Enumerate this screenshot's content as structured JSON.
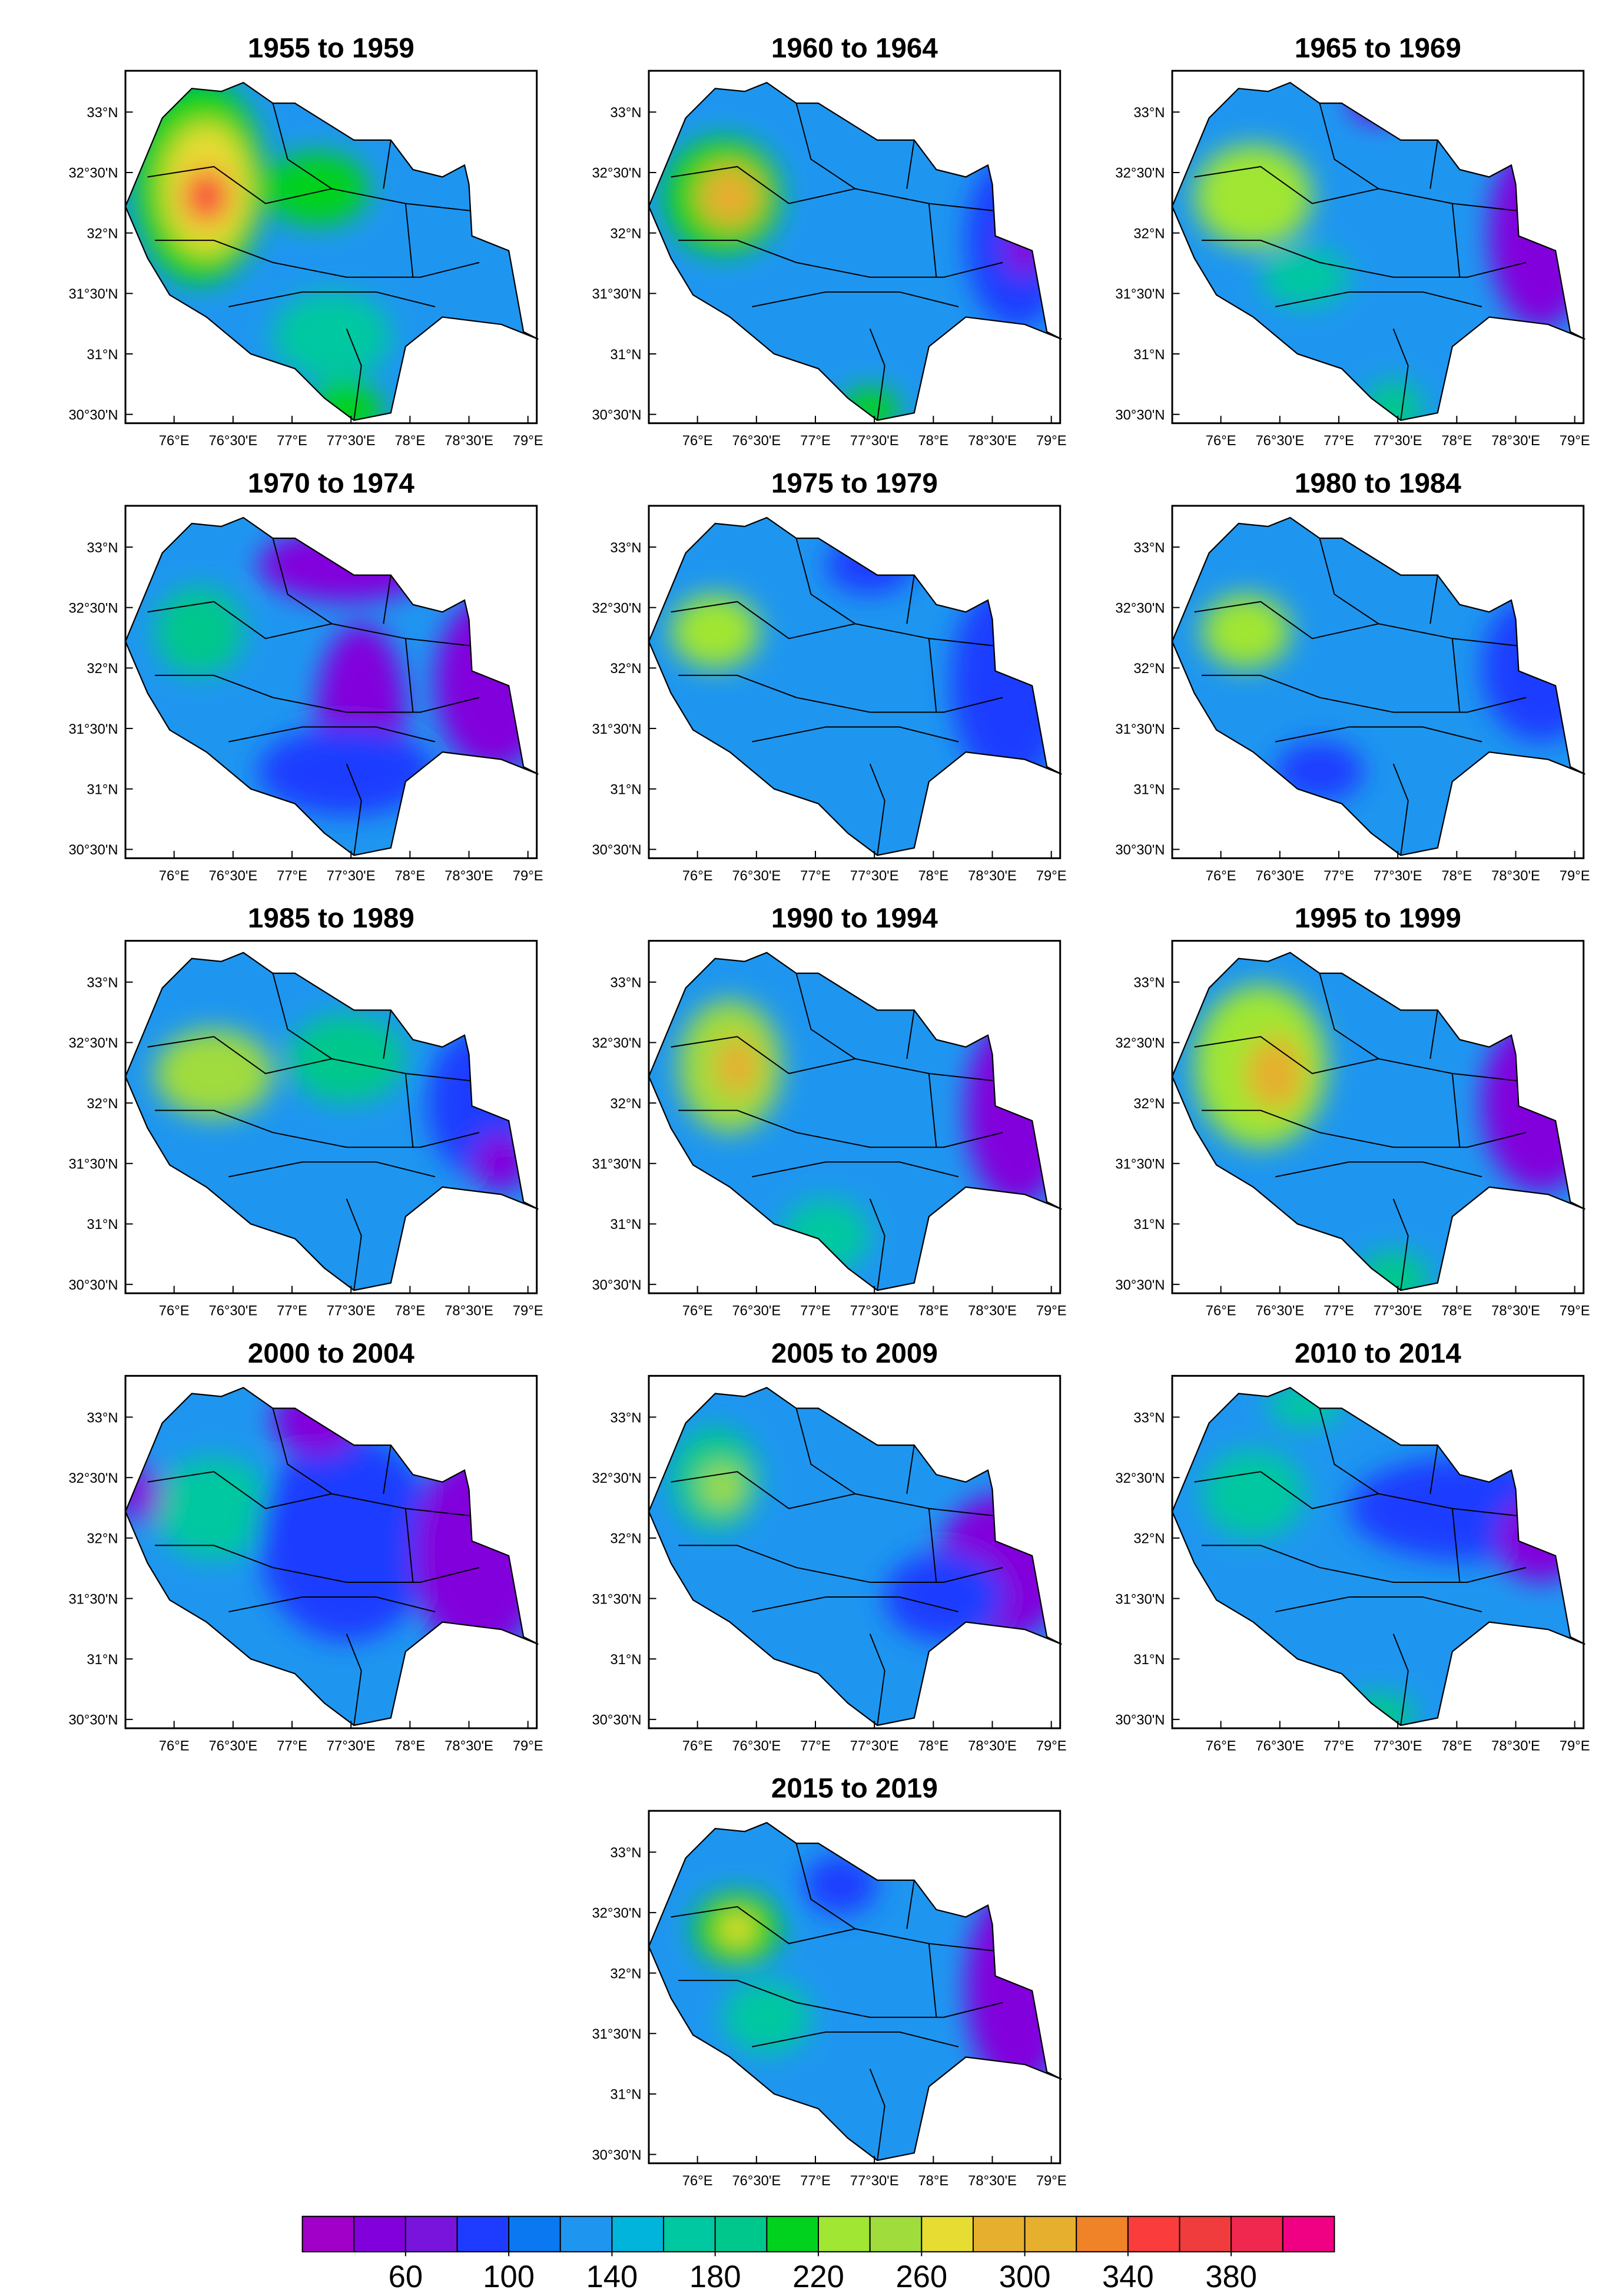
{
  "panels": [
    {
      "title": "1955 to 1959"
    },
    {
      "title": "1960 to 1964"
    },
    {
      "title": "1965 to 1969"
    },
    {
      "title": "1970 to 1974"
    },
    {
      "title": "1975 to 1979"
    },
    {
      "title": "1980 to 1984"
    },
    {
      "title": "1985 to 1989"
    },
    {
      "title": "1990 to 1994"
    },
    {
      "title": "1995 to 1999"
    },
    {
      "title": "2000 to 2004"
    },
    {
      "title": "2005 to 2009"
    },
    {
      "title": "2010 to 2014"
    },
    {
      "title": "2015 to 2019"
    }
  ],
  "lat_labels": [
    "30°30'N",
    "31°N",
    "31°30'N",
    "32°N",
    "32°30'N",
    "33°N"
  ],
  "lon_labels": [
    "76°E",
    "76°30'E",
    "77°E",
    "77°30'E",
    "78°E",
    "78°30'E",
    "79°E"
  ],
  "colorbar": {
    "lim": [
      20,
      420
    ],
    "ticks": [
      60,
      100,
      140,
      180,
      220,
      260,
      300,
      340,
      380
    ],
    "colors": [
      "#a000c8",
      "#8200dc",
      "#7814dc",
      "#1e3cff",
      "#0a78f0",
      "#1e96f0",
      "#00b4dc",
      "#00c8a0",
      "#00c88c",
      "#00d21e",
      "#a0e632",
      "#a0dc3c",
      "#e6dc32",
      "#e6af2d",
      "#e6af2d",
      "#f08228",
      "#fa3c3c",
      "#f03c3c",
      "#f02850",
      "#f00082"
    ]
  }
}
